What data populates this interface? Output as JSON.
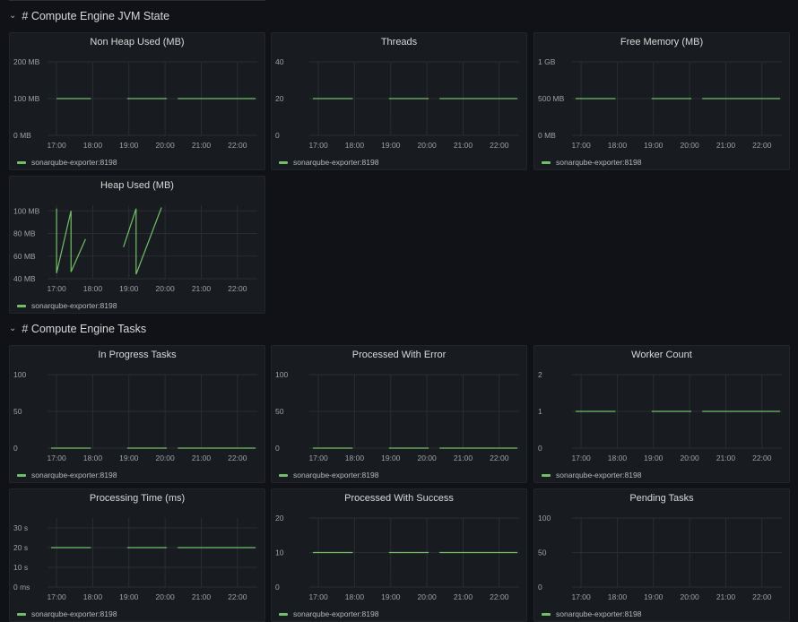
{
  "sections": {
    "jvm": {
      "title": "# Compute Engine JVM State",
      "chevron": "chevron-down-icon"
    },
    "tasks": {
      "title": "# Compute Engine Tasks",
      "chevron": "chevron-down-icon"
    }
  },
  "colors": {
    "series": "#73bf69",
    "grid": "#2a2d33",
    "panel_bg": "#181b1f",
    "page_bg": "#111217"
  },
  "legend_label": "sonarqube-exporter:8198",
  "chart_data": [
    {
      "id": "non-heap-used",
      "title": "Non Heap Used (MB)",
      "type": "line",
      "xticks": [
        "17:00",
        "18:00",
        "19:00",
        "20:00",
        "21:00",
        "22:00"
      ],
      "xdomain": [
        16.75,
        22.55
      ],
      "ylim": [
        0,
        200
      ],
      "yticks": [
        {
          "v": 0,
          "label": "0 MB"
        },
        {
          "v": 100,
          "label": "100 MB"
        },
        {
          "v": 200,
          "label": "200 MB"
        }
      ],
      "series": [
        {
          "segments": [
            [
              [
                17.0,
                100
              ],
              [
                17.95,
                100
              ]
            ],
            [
              [
                18.95,
                100
              ],
              [
                20.05,
                100
              ]
            ],
            [
              [
                20.35,
                100
              ],
              [
                22.5,
                100
              ]
            ]
          ]
        }
      ]
    },
    {
      "id": "threads",
      "title": "Threads",
      "type": "line",
      "xticks": [
        "17:00",
        "18:00",
        "19:00",
        "20:00",
        "21:00",
        "22:00"
      ],
      "xdomain": [
        16.75,
        22.55
      ],
      "ylim": [
        0,
        40
      ],
      "yticks": [
        {
          "v": 0,
          "label": "0"
        },
        {
          "v": 20,
          "label": "20"
        },
        {
          "v": 40,
          "label": "40"
        }
      ],
      "series": [
        {
          "segments": [
            [
              [
                16.85,
                20
              ],
              [
                17.95,
                20
              ]
            ],
            [
              [
                18.95,
                20
              ],
              [
                20.05,
                20
              ]
            ],
            [
              [
                20.35,
                20
              ],
              [
                22.5,
                20
              ]
            ]
          ]
        }
      ]
    },
    {
      "id": "free-memory",
      "title": "Free Memory (MB)",
      "type": "line",
      "xticks": [
        "17:00",
        "18:00",
        "19:00",
        "20:00",
        "21:00",
        "22:00"
      ],
      "xdomain": [
        16.75,
        22.55
      ],
      "ylim": [
        0,
        1000
      ],
      "yticks": [
        {
          "v": 0,
          "label": "0 MB"
        },
        {
          "v": 500,
          "label": "500 MB"
        },
        {
          "v": 1000,
          "label": "1 GB"
        }
      ],
      "series": [
        {
          "segments": [
            [
              [
                16.85,
                500
              ],
              [
                17.95,
                500
              ]
            ],
            [
              [
                18.95,
                500
              ],
              [
                20.05,
                500
              ]
            ],
            [
              [
                20.35,
                500
              ],
              [
                22.5,
                500
              ]
            ]
          ]
        }
      ]
    },
    {
      "id": "heap-used",
      "title": "Heap Used (MB)",
      "type": "line",
      "xticks": [
        "17:00",
        "18:00",
        "19:00",
        "20:00",
        "21:00",
        "22:00"
      ],
      "xdomain": [
        16.75,
        22.55
      ],
      "ylim": [
        40,
        105
      ],
      "yticks": [
        {
          "v": 40,
          "label": "40 MB"
        },
        {
          "v": 60,
          "label": "60 MB"
        },
        {
          "v": 80,
          "label": "80 MB"
        },
        {
          "v": 100,
          "label": "100 MB"
        }
      ],
      "series": [
        {
          "segments": [
            [
              [
                17.0,
                102
              ],
              [
                17.0,
                45
              ],
              [
                17.4,
                100
              ],
              [
                17.4,
                46
              ],
              [
                17.8,
                75
              ]
            ],
            [
              [
                18.85,
                68
              ],
              [
                19.2,
                102
              ],
              [
                19.2,
                44
              ],
              [
                19.9,
                103
              ]
            ]
          ]
        }
      ]
    },
    {
      "id": "in-progress-tasks",
      "title": "In Progress Tasks",
      "type": "line",
      "xticks": [
        "17:00",
        "18:00",
        "19:00",
        "20:00",
        "21:00",
        "22:00"
      ],
      "xdomain": [
        16.75,
        22.55
      ],
      "ylim": [
        0,
        100
      ],
      "yticks": [
        {
          "v": 0,
          "label": "0"
        },
        {
          "v": 50,
          "label": "50"
        },
        {
          "v": 100,
          "label": "100"
        }
      ],
      "series": [
        {
          "segments": [
            [
              [
                16.85,
                0
              ],
              [
                17.95,
                0
              ]
            ],
            [
              [
                18.95,
                0
              ],
              [
                20.05,
                0
              ]
            ],
            [
              [
                20.35,
                0
              ],
              [
                22.5,
                0
              ]
            ]
          ]
        }
      ]
    },
    {
      "id": "processed-with-error",
      "title": "Processed With Error",
      "type": "line",
      "xticks": [
        "17:00",
        "18:00",
        "19:00",
        "20:00",
        "21:00",
        "22:00"
      ],
      "xdomain": [
        16.75,
        22.55
      ],
      "ylim": [
        0,
        100
      ],
      "yticks": [
        {
          "v": 0,
          "label": "0"
        },
        {
          "v": 50,
          "label": "50"
        },
        {
          "v": 100,
          "label": "100"
        }
      ],
      "series": [
        {
          "segments": [
            [
              [
                16.85,
                0
              ],
              [
                17.95,
                0
              ]
            ],
            [
              [
                18.95,
                0
              ],
              [
                20.05,
                0
              ]
            ],
            [
              [
                20.35,
                0
              ],
              [
                22.5,
                0
              ]
            ]
          ]
        }
      ]
    },
    {
      "id": "worker-count",
      "title": "Worker Count",
      "type": "line",
      "xticks": [
        "17:00",
        "18:00",
        "19:00",
        "20:00",
        "21:00",
        "22:00"
      ],
      "xdomain": [
        16.75,
        22.55
      ],
      "ylim": [
        0,
        2
      ],
      "yticks": [
        {
          "v": 0,
          "label": "0"
        },
        {
          "v": 1,
          "label": "1"
        },
        {
          "v": 2,
          "label": "2"
        }
      ],
      "series": [
        {
          "segments": [
            [
              [
                16.85,
                1
              ],
              [
                17.95,
                1
              ]
            ],
            [
              [
                18.95,
                1
              ],
              [
                20.05,
                1
              ]
            ],
            [
              [
                20.35,
                1
              ],
              [
                22.5,
                1
              ]
            ]
          ]
        }
      ]
    },
    {
      "id": "processing-time",
      "title": "Processing Time (ms)",
      "type": "line",
      "xticks": [
        "17:00",
        "18:00",
        "19:00",
        "20:00",
        "21:00",
        "22:00"
      ],
      "xdomain": [
        16.75,
        22.55
      ],
      "ylim": [
        0,
        35
      ],
      "yticks": [
        {
          "v": 0,
          "label": "0 ms"
        },
        {
          "v": 10,
          "label": "10 s"
        },
        {
          "v": 20,
          "label": "20 s"
        },
        {
          "v": 30,
          "label": "30 s"
        }
      ],
      "series": [
        {
          "segments": [
            [
              [
                16.85,
                20
              ],
              [
                17.95,
                20
              ]
            ],
            [
              [
                18.95,
                20
              ],
              [
                20.05,
                20
              ]
            ],
            [
              [
                20.35,
                20
              ],
              [
                22.5,
                20
              ]
            ]
          ]
        }
      ]
    },
    {
      "id": "processed-with-success",
      "title": "Processed With Success",
      "type": "line",
      "xticks": [
        "17:00",
        "18:00",
        "19:00",
        "20:00",
        "21:00",
        "22:00"
      ],
      "xdomain": [
        16.75,
        22.55
      ],
      "ylim": [
        0,
        20
      ],
      "yticks": [
        {
          "v": 0,
          "label": "0"
        },
        {
          "v": 10,
          "label": "10"
        },
        {
          "v": 20,
          "label": "20"
        }
      ],
      "series": [
        {
          "segments": [
            [
              [
                16.85,
                10
              ],
              [
                17.95,
                10
              ]
            ],
            [
              [
                18.95,
                10
              ],
              [
                20.05,
                10
              ]
            ],
            [
              [
                20.35,
                10
              ],
              [
                22.5,
                10
              ]
            ]
          ]
        }
      ]
    },
    {
      "id": "pending-tasks",
      "title": "Pending Tasks",
      "type": "line",
      "xticks": [
        "17:00",
        "18:00",
        "19:00",
        "20:00",
        "21:00",
        "22:00"
      ],
      "xdomain": [
        16.75,
        22.55
      ],
      "ylim": [
        0,
        100
      ],
      "yticks": [
        {
          "v": 0,
          "label": "0"
        },
        {
          "v": 50,
          "label": "50"
        },
        {
          "v": 100,
          "label": "100"
        }
      ],
      "series": [
        {
          "segments": []
        }
      ]
    }
  ]
}
